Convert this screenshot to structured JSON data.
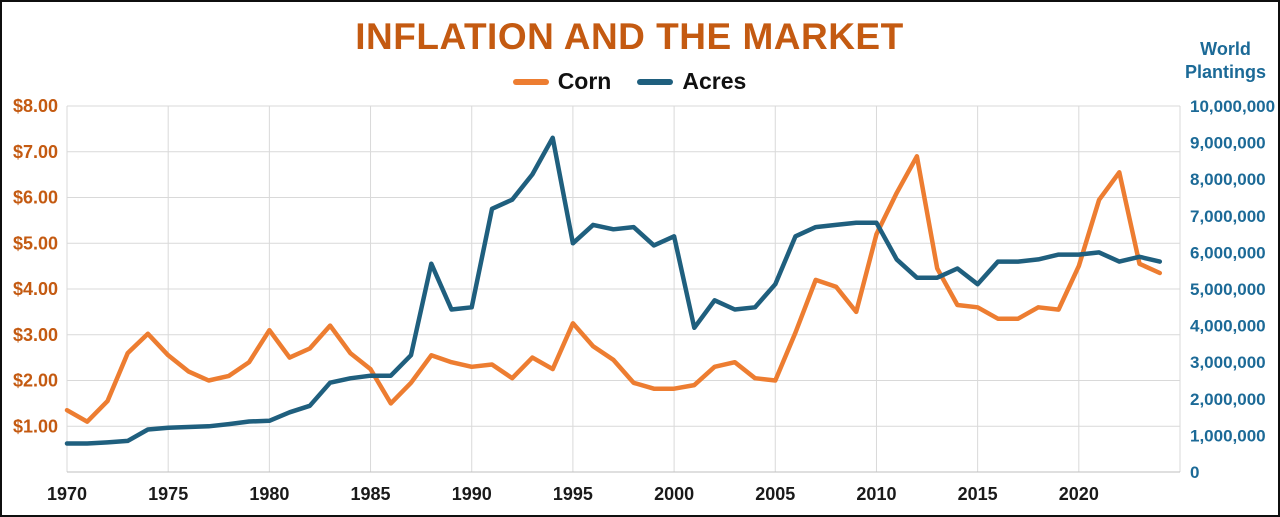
{
  "header": {
    "title_color": "#C45A11"
  },
  "chart_data": {
    "type": "line",
    "title": "INFLATION AND THE MARKET",
    "legend_position": "top",
    "grid": true,
    "gridline_color": "#D9D9D9",
    "baseline_color": "#BFBFBF",
    "x": [
      1970,
      1971,
      1972,
      1973,
      1974,
      1975,
      1976,
      1977,
      1978,
      1979,
      1980,
      1981,
      1982,
      1983,
      1984,
      1985,
      1986,
      1987,
      1988,
      1989,
      1990,
      1991,
      1992,
      1993,
      1994,
      1995,
      1996,
      1997,
      1998,
      1999,
      2000,
      2001,
      2002,
      2003,
      2004,
      2005,
      2006,
      2007,
      2008,
      2009,
      2010,
      2011,
      2012,
      2013,
      2014,
      2015,
      2016,
      2017,
      2018,
      2019,
      2020,
      2021,
      2022,
      2023,
      2024
    ],
    "series": [
      {
        "name": "Corn",
        "axis": "left",
        "color": "#ED7D31",
        "values": [
          1.35,
          1.1,
          1.55,
          2.6,
          3.02,
          2.55,
          2.2,
          2.0,
          2.1,
          2.4,
          3.1,
          2.5,
          2.7,
          3.2,
          2.6,
          2.25,
          1.5,
          1.95,
          2.55,
          2.4,
          2.3,
          2.35,
          2.05,
          2.5,
          2.25,
          3.25,
          2.75,
          2.45,
          1.95,
          1.82,
          1.82,
          1.9,
          2.3,
          2.4,
          2.05,
          2.0,
          3.05,
          4.2,
          4.05,
          3.5,
          5.2,
          6.1,
          6.9,
          4.45,
          3.65,
          3.6,
          3.35,
          3.35,
          3.6,
          3.55,
          4.5,
          5.95,
          6.55,
          4.55,
          4.35
        ]
      },
      {
        "name": "Acres",
        "axis": "right",
        "color": "#1F5F7E",
        "values": [
          780000,
          780000,
          810000,
          850000,
          1160000,
          1210000,
          1230000,
          1250000,
          1310000,
          1380000,
          1400000,
          1630000,
          1810000,
          2440000,
          2560000,
          2630000,
          2630000,
          3190000,
          5690000,
          4440000,
          4500000,
          7190000,
          7440000,
          8130000,
          9130000,
          6250000,
          6750000,
          6630000,
          6690000,
          6190000,
          6440000,
          3940000,
          4690000,
          4440000,
          4500000,
          5130000,
          6440000,
          6690000,
          6750000,
          6810000,
          6810000,
          5810000,
          5310000,
          5310000,
          5560000,
          5130000,
          5750000,
          5750000,
          5810000,
          5940000,
          5940000,
          6000000,
          5750000,
          5880000,
          5750000
        ]
      }
    ],
    "left_axis": {
      "min": 0,
      "max": 8,
      "color": "#C45A11",
      "tick_values": [
        1,
        2,
        3,
        4,
        5,
        6,
        7,
        8
      ],
      "tick_labels": [
        "$1.00",
        "$2.00",
        "$3.00",
        "$4.00",
        "$5.00",
        "$6.00",
        "$7.00",
        "$8.00"
      ]
    },
    "right_axis": {
      "min": 0,
      "max": 10000000,
      "color": "#1C6A97",
      "title_line1": "World",
      "title_line2": "Plantings",
      "tick_values": [
        0,
        1000000,
        2000000,
        3000000,
        4000000,
        5000000,
        6000000,
        7000000,
        8000000,
        9000000,
        10000000
      ],
      "tick_labels": [
        "0",
        "1,000,000",
        "2,000,000",
        "3,000,000",
        "4,000,000",
        "5,000,000",
        "6,000,000",
        "7,000,000",
        "8,000,000",
        "9,000,000",
        "10,000,000"
      ]
    },
    "x_axis": {
      "min": 1970,
      "max": 2025,
      "grid_step": 5,
      "color": "#1A1A1A",
      "tick_values": [
        1970,
        1975,
        1980,
        1985,
        1990,
        1995,
        2000,
        2005,
        2010,
        2015,
        2020
      ],
      "tick_labels": [
        "1970",
        "1975",
        "1980",
        "1985",
        "1990",
        "1995",
        "2000",
        "2005",
        "2010",
        "2015",
        "2020"
      ]
    }
  }
}
